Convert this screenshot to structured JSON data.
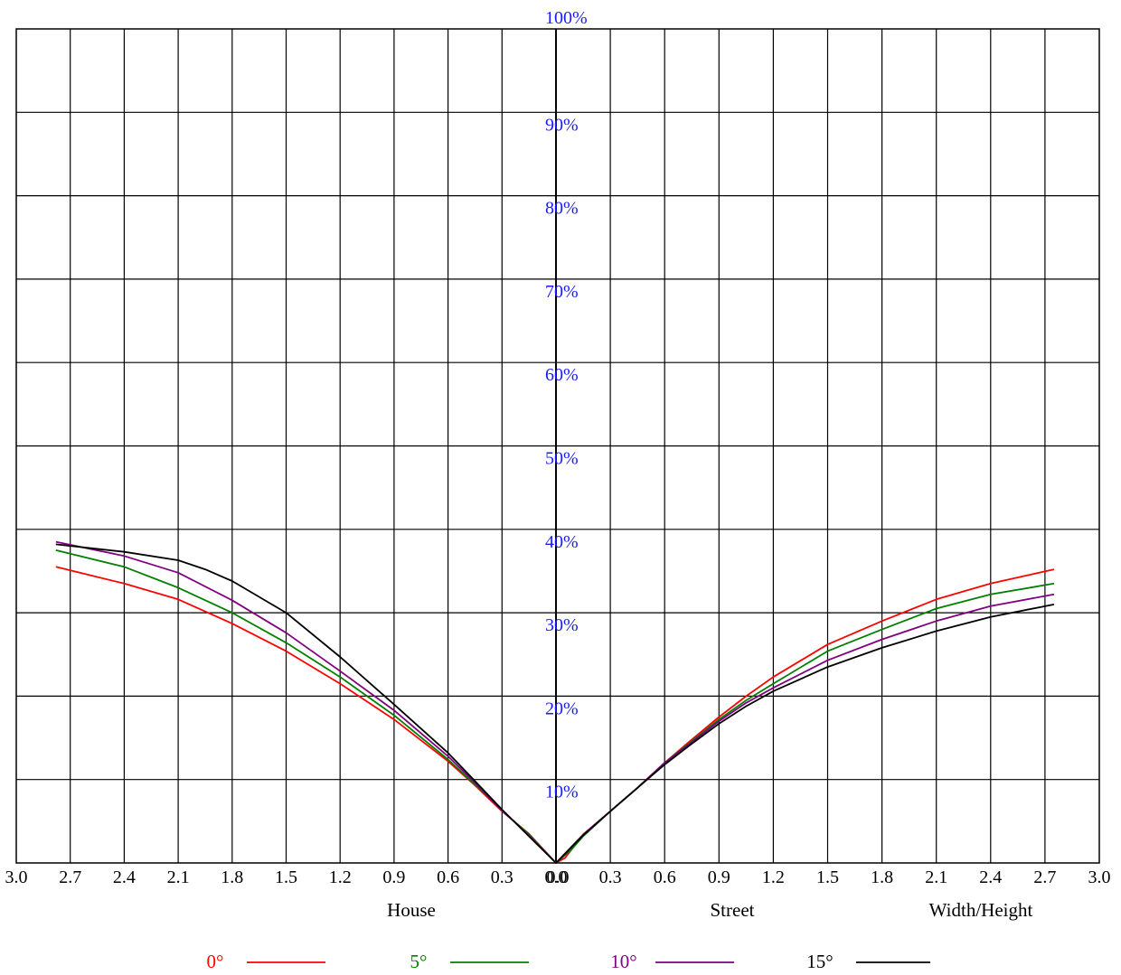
{
  "chart_data": {
    "type": "line",
    "title": "",
    "y_tick_labels": [
      "10%",
      "20%",
      "30%",
      "40%",
      "50%",
      "60%",
      "70%",
      "80%",
      "90%",
      "100%"
    ],
    "x_tick_labels_left": [
      "3.0",
      "2.7",
      "2.4",
      "2.1",
      "1.8",
      "1.5",
      "1.2",
      "0.9",
      "0.6",
      "0.3",
      "0.0"
    ],
    "x_tick_labels_right": [
      "0.0",
      "0.3",
      "0.6",
      "0.9",
      "1.2",
      "1.5",
      "1.8",
      "2.1",
      "2.4",
      "2.7",
      "3.0"
    ],
    "x_axis_words": {
      "left": "House",
      "middle": "Street",
      "right": "Width/Height"
    },
    "xlim": [
      -3.0,
      3.0
    ],
    "ylim": [
      0,
      100
    ],
    "grid": true,
    "legend_placement": "bottom",
    "series": [
      {
        "name": "0°",
        "color": "#ff0000",
        "points": [
          [
            -2.78,
            35.5
          ],
          [
            -2.4,
            33.5
          ],
          [
            -2.1,
            31.6
          ],
          [
            -1.8,
            28.7
          ],
          [
            -1.5,
            25.4
          ],
          [
            -1.2,
            21.5
          ],
          [
            -0.9,
            17.2
          ],
          [
            -0.6,
            12.2
          ],
          [
            -0.45,
            9.3
          ],
          [
            -0.3,
            6.2
          ],
          [
            -0.15,
            3.5
          ],
          [
            0.0,
            0.0
          ],
          [
            0.05,
            0.6
          ],
          [
            0.15,
            3.4
          ],
          [
            0.3,
            6.2
          ],
          [
            0.45,
            9.0
          ],
          [
            0.6,
            12.0
          ],
          [
            0.75,
            14.8
          ],
          [
            0.9,
            17.5
          ],
          [
            1.05,
            20.0
          ],
          [
            1.2,
            22.3
          ],
          [
            1.5,
            26.2
          ],
          [
            1.8,
            29.0
          ],
          [
            2.1,
            31.6
          ],
          [
            2.4,
            33.5
          ],
          [
            2.75,
            35.2
          ]
        ]
      },
      {
        "name": "5°",
        "color": "#008000",
        "points": [
          [
            -2.78,
            37.5
          ],
          [
            -2.4,
            35.5
          ],
          [
            -2.1,
            33.0
          ],
          [
            -1.8,
            30.0
          ],
          [
            -1.5,
            26.4
          ],
          [
            -1.2,
            22.3
          ],
          [
            -0.9,
            17.7
          ],
          [
            -0.6,
            12.4
          ],
          [
            -0.45,
            9.4
          ],
          [
            -0.3,
            6.3
          ],
          [
            -0.15,
            3.4
          ],
          [
            0.0,
            0.0
          ],
          [
            0.08,
            1.5
          ],
          [
            0.15,
            3.2
          ],
          [
            0.3,
            6.2
          ],
          [
            0.45,
            9.0
          ],
          [
            0.6,
            12.0
          ],
          [
            0.75,
            14.6
          ],
          [
            0.9,
            17.2
          ],
          [
            1.05,
            19.5
          ],
          [
            1.2,
            21.5
          ],
          [
            1.5,
            25.4
          ],
          [
            1.8,
            28.0
          ],
          [
            2.1,
            30.5
          ],
          [
            2.4,
            32.2
          ],
          [
            2.75,
            33.5
          ]
        ]
      },
      {
        "name": "10°",
        "color": "#800080",
        "points": [
          [
            -2.78,
            38.5
          ],
          [
            -2.4,
            36.8
          ],
          [
            -2.1,
            34.8
          ],
          [
            -1.8,
            31.5
          ],
          [
            -1.5,
            27.6
          ],
          [
            -1.2,
            23.0
          ],
          [
            -0.9,
            18.3
          ],
          [
            -0.6,
            12.8
          ],
          [
            -0.45,
            9.6
          ],
          [
            -0.3,
            6.3
          ],
          [
            -0.15,
            3.3
          ],
          [
            0.0,
            0.0
          ],
          [
            0.15,
            3.4
          ],
          [
            0.3,
            6.2
          ],
          [
            0.45,
            9.0
          ],
          [
            0.6,
            12.0
          ],
          [
            0.75,
            14.5
          ],
          [
            0.9,
            17.0
          ],
          [
            1.05,
            19.2
          ],
          [
            1.2,
            21.0
          ],
          [
            1.5,
            24.3
          ],
          [
            1.8,
            26.8
          ],
          [
            2.1,
            29.0
          ],
          [
            2.4,
            30.8
          ],
          [
            2.75,
            32.2
          ]
        ]
      },
      {
        "name": "15°",
        "color": "#000000",
        "points": [
          [
            -2.78,
            38.2
          ],
          [
            -2.4,
            37.3
          ],
          [
            -2.1,
            36.3
          ],
          [
            -1.95,
            35.2
          ],
          [
            -1.8,
            33.8
          ],
          [
            -1.5,
            30.0
          ],
          [
            -1.2,
            24.7
          ],
          [
            -0.9,
            19.0
          ],
          [
            -0.6,
            13.2
          ],
          [
            -0.45,
            9.8
          ],
          [
            -0.3,
            6.4
          ],
          [
            -0.15,
            3.2
          ],
          [
            0.0,
            0.0
          ],
          [
            0.15,
            3.3
          ],
          [
            0.3,
            6.2
          ],
          [
            0.45,
            9.0
          ],
          [
            0.6,
            11.8
          ],
          [
            0.75,
            14.3
          ],
          [
            0.9,
            16.7
          ],
          [
            1.05,
            18.8
          ],
          [
            1.2,
            20.6
          ],
          [
            1.5,
            23.5
          ],
          [
            1.8,
            25.8
          ],
          [
            2.1,
            27.8
          ],
          [
            2.4,
            29.5
          ],
          [
            2.75,
            31.0
          ]
        ]
      }
    ]
  }
}
